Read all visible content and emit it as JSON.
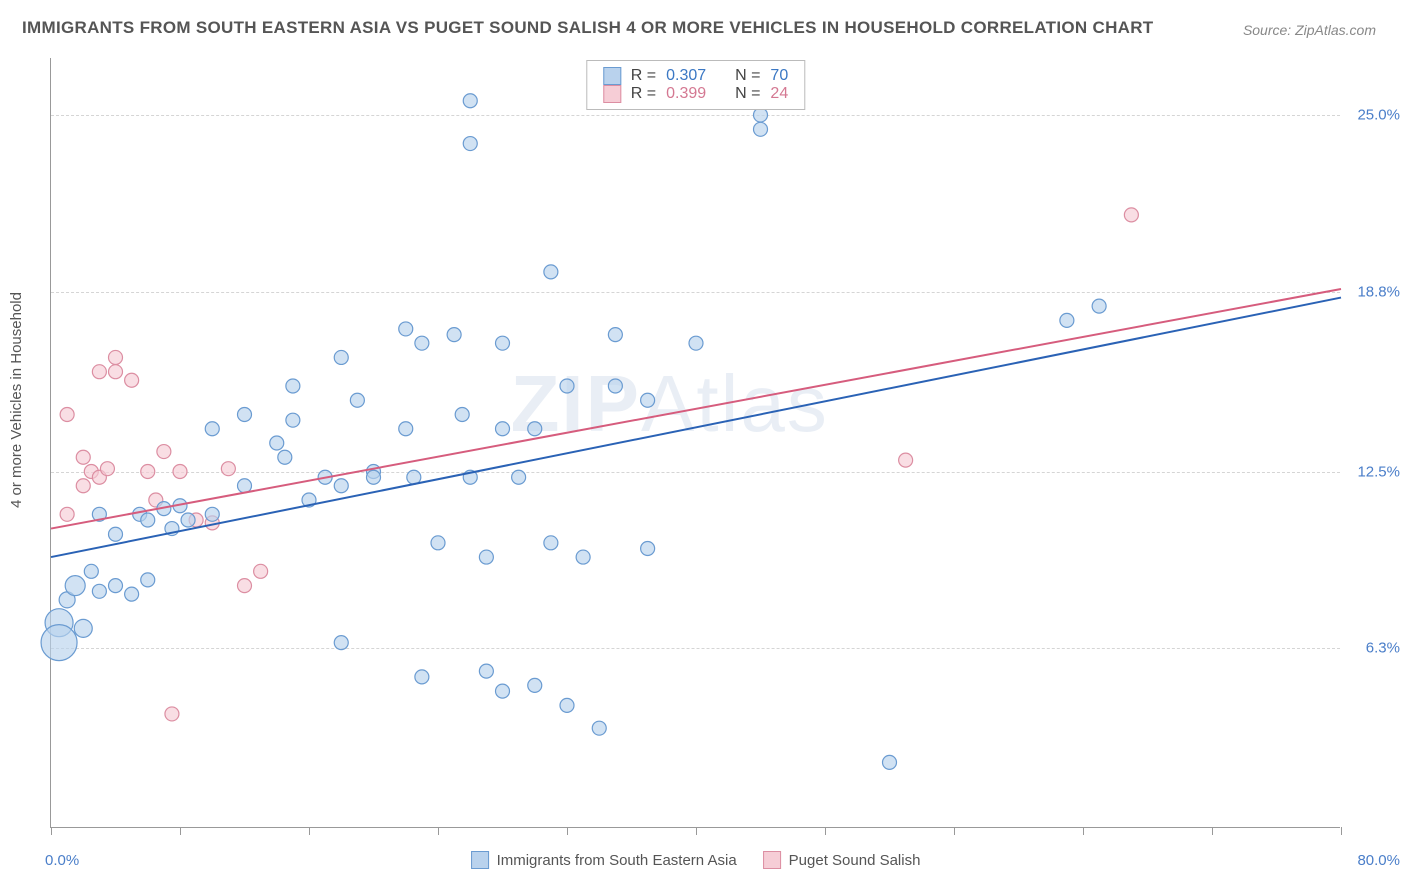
{
  "title": "IMMIGRANTS FROM SOUTH EASTERN ASIA VS PUGET SOUND SALISH 4 OR MORE VEHICLES IN HOUSEHOLD CORRELATION CHART",
  "source": "Source: ZipAtlas.com",
  "watermark": {
    "part1": "ZIP",
    "part2": "Atlas"
  },
  "y_axis": {
    "label": "4 or more Vehicles in Household"
  },
  "x_axis": {
    "min_label": "0.0%",
    "max_label": "80.0%"
  },
  "chart": {
    "type": "scatter",
    "xlim": [
      0,
      80
    ],
    "ylim": [
      0,
      27
    ],
    "y_gridlines": [
      {
        "value": 6.3,
        "label": "6.3%"
      },
      {
        "value": 12.5,
        "label": "12.5%"
      },
      {
        "value": 18.8,
        "label": "18.8%"
      },
      {
        "value": 25.0,
        "label": "25.0%"
      }
    ],
    "x_ticks": [
      0,
      8,
      16,
      24,
      32,
      40,
      48,
      56,
      64,
      72,
      80
    ],
    "background_color": "#ffffff",
    "grid_color": "#d5d5d5"
  },
  "series": {
    "blue": {
      "name": "Immigrants from South Eastern Asia",
      "fill": "#b9d2ed",
      "stroke": "#6a9bd1",
      "r_value": "0.307",
      "n_value": "70",
      "trend": {
        "x1": 0,
        "y1": 9.5,
        "x2": 80,
        "y2": 18.6,
        "color": "#2a62b5",
        "width": 2
      },
      "points": [
        {
          "x": 0.5,
          "y": 7.2,
          "r": 14
        },
        {
          "x": 0.5,
          "y": 6.5,
          "r": 18
        },
        {
          "x": 1,
          "y": 8,
          "r": 8
        },
        {
          "x": 1.5,
          "y": 8.5,
          "r": 10
        },
        {
          "x": 2,
          "y": 7,
          "r": 9
        },
        {
          "x": 2.5,
          "y": 9,
          "r": 7
        },
        {
          "x": 3,
          "y": 8.3,
          "r": 7
        },
        {
          "x": 3,
          "y": 11,
          "r": 7
        },
        {
          "x": 4,
          "y": 8.5,
          "r": 7
        },
        {
          "x": 4,
          "y": 10.3,
          "r": 7
        },
        {
          "x": 5,
          "y": 8.2,
          "r": 7
        },
        {
          "x": 5.5,
          "y": 11,
          "r": 7
        },
        {
          "x": 6,
          "y": 8.7,
          "r": 7
        },
        {
          "x": 6,
          "y": 10.8,
          "r": 7
        },
        {
          "x": 7,
          "y": 11.2,
          "r": 7
        },
        {
          "x": 7.5,
          "y": 10.5,
          "r": 7
        },
        {
          "x": 8,
          "y": 11.3,
          "r": 7
        },
        {
          "x": 8.5,
          "y": 10.8,
          "r": 7
        },
        {
          "x": 10,
          "y": 14,
          "r": 7
        },
        {
          "x": 10,
          "y": 11,
          "r": 7
        },
        {
          "x": 12,
          "y": 12,
          "r": 7
        },
        {
          "x": 12,
          "y": 14.5,
          "r": 7
        },
        {
          "x": 14,
          "y": 13.5,
          "r": 7
        },
        {
          "x": 14.5,
          "y": 13,
          "r": 7
        },
        {
          "x": 15,
          "y": 14.3,
          "r": 7
        },
        {
          "x": 15,
          "y": 15.5,
          "r": 7
        },
        {
          "x": 16,
          "y": 11.5,
          "r": 7
        },
        {
          "x": 17,
          "y": 12.3,
          "r": 7
        },
        {
          "x": 18,
          "y": 16.5,
          "r": 7
        },
        {
          "x": 18,
          "y": 6.5,
          "r": 7
        },
        {
          "x": 18,
          "y": 12,
          "r": 7
        },
        {
          "x": 19,
          "y": 15,
          "r": 7
        },
        {
          "x": 20,
          "y": 12.5,
          "r": 7
        },
        {
          "x": 20,
          "y": 12.3,
          "r": 7
        },
        {
          "x": 22,
          "y": 17.5,
          "r": 7
        },
        {
          "x": 22,
          "y": 14,
          "r": 7
        },
        {
          "x": 22.5,
          "y": 12.3,
          "r": 7
        },
        {
          "x": 23,
          "y": 17,
          "r": 7
        },
        {
          "x": 23,
          "y": 5.3,
          "r": 7
        },
        {
          "x": 24,
          "y": 10,
          "r": 7
        },
        {
          "x": 25,
          "y": 17.3,
          "r": 7
        },
        {
          "x": 25.5,
          "y": 14.5,
          "r": 7
        },
        {
          "x": 26,
          "y": 24,
          "r": 7
        },
        {
          "x": 26,
          "y": 25.5,
          "r": 7
        },
        {
          "x": 26,
          "y": 12.3,
          "r": 7
        },
        {
          "x": 27,
          "y": 9.5,
          "r": 7
        },
        {
          "x": 27,
          "y": 5.5,
          "r": 7
        },
        {
          "x": 28,
          "y": 14,
          "r": 7
        },
        {
          "x": 28,
          "y": 4.8,
          "r": 7
        },
        {
          "x": 28,
          "y": 17,
          "r": 7
        },
        {
          "x": 29,
          "y": 12.3,
          "r": 7
        },
        {
          "x": 30,
          "y": 14,
          "r": 7
        },
        {
          "x": 30,
          "y": 5,
          "r": 7
        },
        {
          "x": 31,
          "y": 10,
          "r": 7
        },
        {
          "x": 31,
          "y": 19.5,
          "r": 7
        },
        {
          "x": 32,
          "y": 15.5,
          "r": 7
        },
        {
          "x": 32,
          "y": 4.3,
          "r": 7
        },
        {
          "x": 33,
          "y": 9.5,
          "r": 7
        },
        {
          "x": 34,
          "y": 3.5,
          "r": 7
        },
        {
          "x": 35,
          "y": 15.5,
          "r": 7
        },
        {
          "x": 35,
          "y": 17.3,
          "r": 7
        },
        {
          "x": 37,
          "y": 15,
          "r": 7
        },
        {
          "x": 37,
          "y": 9.8,
          "r": 7
        },
        {
          "x": 40,
          "y": 17,
          "r": 7
        },
        {
          "x": 44,
          "y": 25,
          "r": 7
        },
        {
          "x": 44,
          "y": 24.5,
          "r": 7
        },
        {
          "x": 52,
          "y": 2.3,
          "r": 7
        },
        {
          "x": 63,
          "y": 17.8,
          "r": 7
        },
        {
          "x": 65,
          "y": 18.3,
          "r": 7
        }
      ]
    },
    "pink": {
      "name": "Puget Sound Salish",
      "fill": "#f6cdd6",
      "stroke": "#dc8ea2",
      "r_value": "0.399",
      "n_value": "24",
      "trend": {
        "x1": 0,
        "y1": 10.5,
        "x2": 80,
        "y2": 18.9,
        "color": "#d65c7d",
        "width": 2
      },
      "points": [
        {
          "x": 1,
          "y": 11,
          "r": 7
        },
        {
          "x": 1,
          "y": 14.5,
          "r": 7
        },
        {
          "x": 2,
          "y": 12,
          "r": 7
        },
        {
          "x": 2,
          "y": 13,
          "r": 7
        },
        {
          "x": 2.5,
          "y": 12.5,
          "r": 7
        },
        {
          "x": 3,
          "y": 12.3,
          "r": 7
        },
        {
          "x": 3,
          "y": 16,
          "r": 7
        },
        {
          "x": 3.5,
          "y": 12.6,
          "r": 7
        },
        {
          "x": 4,
          "y": 16.5,
          "r": 7
        },
        {
          "x": 4,
          "y": 16,
          "r": 7
        },
        {
          "x": 5,
          "y": 15.7,
          "r": 7
        },
        {
          "x": 6,
          "y": 12.5,
          "r": 7
        },
        {
          "x": 6.5,
          "y": 11.5,
          "r": 7
        },
        {
          "x": 7,
          "y": 13.2,
          "r": 7
        },
        {
          "x": 7.5,
          "y": 4,
          "r": 7
        },
        {
          "x": 8,
          "y": 12.5,
          "r": 7
        },
        {
          "x": 9,
          "y": 10.8,
          "r": 7
        },
        {
          "x": 10,
          "y": 10.7,
          "r": 7
        },
        {
          "x": 11,
          "y": 12.6,
          "r": 7
        },
        {
          "x": 12,
          "y": 8.5,
          "r": 7
        },
        {
          "x": 13,
          "y": 9,
          "r": 7
        },
        {
          "x": 53,
          "y": 12.9,
          "r": 7
        },
        {
          "x": 67,
          "y": 21.5,
          "r": 7
        }
      ]
    }
  },
  "legend": {
    "r_prefix": "R =",
    "n_prefix": "N ="
  }
}
